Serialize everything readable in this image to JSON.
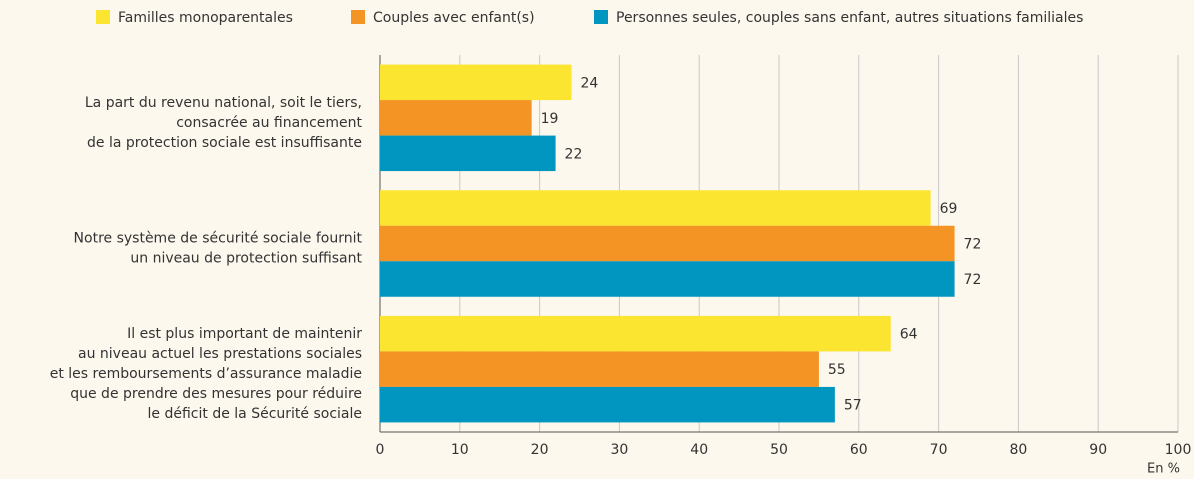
{
  "chart_data": {
    "type": "barh",
    "categories": [
      [
        "La part du revenu national, soit le tiers,",
        "consacrée au financement",
        "de la protection sociale est insuffisante"
      ],
      [
        "Notre système de sécurité sociale fournit",
        "un niveau de protection suffisant"
      ],
      [
        "Il est plus important de maintenir",
        "au niveau actuel les prestations sociales",
        "et les remboursements d’assurance maladie",
        "que de prendre des mesures pour réduire",
        "le déficit de la Sécurité sociale"
      ]
    ],
    "series": [
      {
        "name": "Familles monoparentales",
        "color": "#fce530",
        "values": [
          24,
          69,
          64
        ]
      },
      {
        "name": "Couples avec enfant(s)",
        "color": "#f39424",
        "values": [
          19,
          72,
          55
        ]
      },
      {
        "name": "Personnes seules, couples sans enfant, autres situations familiales",
        "color": "#0096bf",
        "values": [
          22,
          72,
          57
        ]
      }
    ],
    "xlim": [
      0,
      100
    ],
    "xticks": [
      0,
      10,
      20,
      30,
      40,
      50,
      60,
      70,
      80,
      90,
      100
    ],
    "x_unit_label": "En %",
    "grid": true,
    "legend": "top"
  }
}
